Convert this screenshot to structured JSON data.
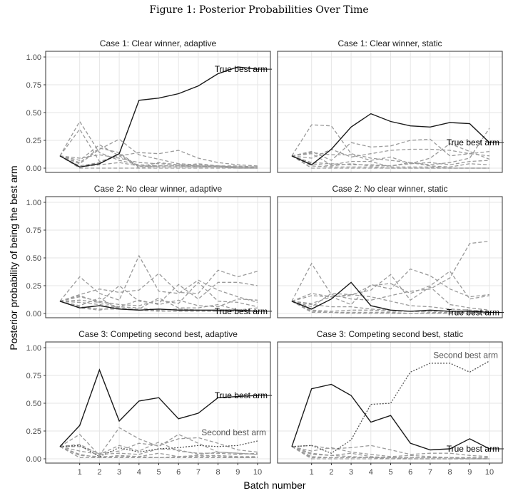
{
  "figure_title": "Figure 1: Posterior Probabilities Over Time",
  "colors": {
    "true_best": "#1a1a1a",
    "competitor": "#9a9a9a",
    "second_best": "#555555",
    "grid": "#e6e6e6",
    "panel_border": "#333333"
  },
  "chart_data": {
    "type": "line",
    "layout": "faceted 3x2 grid",
    "xlabel": "Batch number",
    "ylabel": "Posterior probability of being the best arm",
    "x_ticks": [
      1,
      2,
      3,
      4,
      5,
      6,
      7,
      8,
      9,
      10
    ],
    "y_ticks": [
      "0.00",
      "0.25",
      "0.50",
      "0.75",
      "1.00"
    ],
    "xlim": [
      0,
      10
    ],
    "ylim": [
      0,
      1
    ],
    "grid": true,
    "panels": [
      {
        "title": "Case 1: Clear winner, adaptive",
        "true_best_label": "True best arm",
        "true_best": [
          0.11,
          0.01,
          0.04,
          0.13,
          0.61,
          0.63,
          0.67,
          0.74,
          0.85,
          0.91,
          0.89
        ],
        "others": [
          [
            0.11,
            0.42,
            0.14,
            0.07,
            0.03,
            0.02,
            0.02,
            0.02,
            0.01,
            0.01,
            0.01
          ],
          [
            0.11,
            0.07,
            0.21,
            0.11,
            0.14,
            0.13,
            0.16,
            0.09,
            0.05,
            0.03,
            0.02
          ],
          [
            0.11,
            0.04,
            0.17,
            0.26,
            0.12,
            0.08,
            0.04,
            0.03,
            0.02,
            0.02,
            0.01
          ],
          [
            0.11,
            0.09,
            0.12,
            0.09,
            0.05,
            0.04,
            0.03,
            0.02,
            0.02,
            0.01,
            0.01
          ],
          [
            0.11,
            0.01,
            0.03,
            0.05,
            0.02,
            0.02,
            0.02,
            0.01,
            0.01,
            0.01,
            0.0
          ],
          [
            0.11,
            0.35,
            0.06,
            0.11,
            0.02,
            0.01,
            0.01,
            0.01,
            0.01,
            0.0,
            0.0
          ],
          [
            0.11,
            0.05,
            0.18,
            0.14,
            0.01,
            0.05,
            0.03,
            0.02,
            0.01,
            0.01,
            0.01
          ],
          [
            0.11,
            0.02,
            0.05,
            0.13,
            0.0,
            0.02,
            0.02,
            0.04,
            0.02,
            0.0,
            0.0
          ],
          [
            0.11,
            0.0,
            0.0,
            0.0,
            0.0,
            0.0,
            0.0,
            0.0,
            0.0,
            0.0,
            0.0
          ]
        ]
      },
      {
        "title": "Case 1: Clear winner, static",
        "true_best_label": "True best arm",
        "true_best": [
          0.11,
          0.03,
          0.17,
          0.37,
          0.49,
          0.42,
          0.38,
          0.37,
          0.41,
          0.4,
          0.23
        ],
        "others": [
          [
            0.11,
            0.39,
            0.38,
            0.13,
            0.09,
            0.07,
            0.05,
            0.03,
            0.05,
            0.09,
            0.36
          ],
          [
            0.11,
            0.15,
            0.07,
            0.23,
            0.19,
            0.2,
            0.25,
            0.26,
            0.11,
            0.13,
            0.15
          ],
          [
            0.11,
            0.09,
            0.17,
            0.1,
            0.13,
            0.16,
            0.17,
            0.17,
            0.16,
            0.13,
            0.11
          ],
          [
            0.11,
            0.14,
            0.12,
            0.12,
            0.07,
            0.1,
            0.04,
            0.09,
            0.22,
            0.15,
            0.08
          ],
          [
            0.11,
            0.05,
            0.04,
            0.03,
            0.03,
            0.02,
            0.04,
            0.05,
            0.03,
            0.06,
            0.07
          ],
          [
            0.11,
            0.04,
            0.02,
            0.04,
            0.02,
            0.02,
            0.05,
            0.02,
            0.01,
            0.04,
            0.03
          ],
          [
            0.11,
            0.13,
            0.03,
            0.06,
            0.06,
            0.01,
            0.01,
            0.01,
            0.0,
            0.0,
            0.0
          ],
          [
            0.11,
            0.02,
            0.01,
            0.01,
            0.01,
            0.0,
            0.0,
            0.0,
            0.0,
            0.0,
            0.0
          ],
          [
            0.11,
            0.0,
            0.0,
            0.0,
            0.0,
            0.0,
            0.0,
            0.0,
            0.0,
            0.0,
            0.0
          ]
        ]
      },
      {
        "title": "Case 2: No clear winner, adaptive",
        "true_best_label": "True best arm",
        "true_best": [
          0.11,
          0.05,
          0.07,
          0.04,
          0.03,
          0.04,
          0.03,
          0.03,
          0.03,
          0.03,
          0.02
        ],
        "others": [
          [
            0.11,
            0.33,
            0.18,
            0.12,
            0.52,
            0.2,
            0.18,
            0.3,
            0.21,
            0.15,
            0.1
          ],
          [
            0.11,
            0.17,
            0.22,
            0.19,
            0.21,
            0.36,
            0.19,
            0.18,
            0.39,
            0.33,
            0.38
          ],
          [
            0.11,
            0.16,
            0.1,
            0.25,
            0.11,
            0.09,
            0.26,
            0.13,
            0.28,
            0.28,
            0.25
          ],
          [
            0.11,
            0.15,
            0.11,
            0.08,
            0.07,
            0.12,
            0.09,
            0.28,
            0.11,
            0.1,
            0.06
          ],
          [
            0.11,
            0.12,
            0.1,
            0.06,
            0.12,
            0.08,
            0.12,
            0.07,
            0.06,
            0.13,
            0.12
          ],
          [
            0.11,
            0.07,
            0.14,
            0.04,
            0.04,
            0.14,
            0.05,
            0.05,
            0.08,
            0.03,
            0.05
          ],
          [
            0.11,
            0.05,
            0.03,
            0.06,
            0.05,
            0.03,
            0.04,
            0.03,
            0.02,
            0.02,
            0.02
          ],
          [
            0.11,
            0.06,
            0.04,
            0.04,
            0.03,
            0.02,
            0.02,
            0.02,
            0.02,
            0.02,
            0.02
          ],
          [
            0.11,
            0.1,
            0.08,
            0.05,
            0.03,
            0.03,
            0.04,
            0.03,
            0.02,
            0.02,
            0.02
          ]
        ]
      },
      {
        "title": "Case 2: No clear winner, static",
        "true_best_label": "True best arm",
        "true_best": [
          0.11,
          0.04,
          0.13,
          0.28,
          0.07,
          0.03,
          0.02,
          0.03,
          0.02,
          0.02,
          0.01
        ],
        "others": [
          [
            0.11,
            0.45,
            0.17,
            0.13,
            0.12,
            0.16,
            0.2,
            0.22,
            0.32,
            0.63,
            0.65
          ],
          [
            0.11,
            0.09,
            0.15,
            0.08,
            0.26,
            0.22,
            0.4,
            0.34,
            0.22,
            0.15,
            0.17
          ],
          [
            0.11,
            0.18,
            0.15,
            0.16,
            0.25,
            0.27,
            0.18,
            0.25,
            0.38,
            0.13,
            0.16
          ],
          [
            0.11,
            0.16,
            0.15,
            0.17,
            0.21,
            0.35,
            0.12,
            0.24,
            0.08,
            0.05,
            0.03
          ],
          [
            0.11,
            0.06,
            0.18,
            0.17,
            0.15,
            0.11,
            0.07,
            0.06,
            0.04,
            0.03,
            0.02
          ],
          [
            0.11,
            0.08,
            0.06,
            0.06,
            0.04,
            0.03,
            0.02,
            0.02,
            0.02,
            0.02,
            0.01
          ],
          [
            0.11,
            0.03,
            0.02,
            0.03,
            0.03,
            0.02,
            0.02,
            0.01,
            0.01,
            0.01,
            0.01
          ],
          [
            0.11,
            0.02,
            0.01,
            0.01,
            0.01,
            0.01,
            0.0,
            0.0,
            0.0,
            0.0,
            0.0
          ],
          [
            0.11,
            0.01,
            0.01,
            0.0,
            0.0,
            0.0,
            0.0,
            0.0,
            0.0,
            0.0,
            0.0
          ]
        ]
      },
      {
        "title": "Case 3: Competing second best, adaptive",
        "true_best_label": "True best arm",
        "second_best_label": "Second best arm",
        "true_best": [
          0.11,
          0.3,
          0.8,
          0.34,
          0.52,
          0.55,
          0.36,
          0.41,
          0.55,
          0.56,
          0.57
        ],
        "second_best": [
          0.11,
          0.12,
          0.02,
          0.1,
          0.06,
          0.09,
          0.1,
          0.12,
          0.11,
          0.12,
          0.16
        ],
        "others": [
          [
            0.11,
            0.22,
            0.03,
            0.28,
            0.18,
            0.11,
            0.22,
            0.14,
            0.06,
            0.05,
            0.04
          ],
          [
            0.11,
            0.11,
            0.05,
            0.07,
            0.14,
            0.12,
            0.18,
            0.19,
            0.14,
            0.08,
            0.06
          ],
          [
            0.11,
            0.13,
            0.04,
            0.12,
            0.07,
            0.15,
            0.07,
            0.05,
            0.05,
            0.04,
            0.05
          ],
          [
            0.11,
            0.07,
            0.04,
            0.05,
            0.04,
            0.09,
            0.08,
            0.04,
            0.06,
            0.05,
            0.04
          ],
          [
            0.11,
            0.03,
            0.02,
            0.02,
            0.02,
            0.05,
            0.02,
            0.03,
            0.03,
            0.02,
            0.02
          ],
          [
            0.11,
            0.04,
            0.01,
            0.03,
            0.02,
            0.01,
            0.02,
            0.02,
            0.02,
            0.01,
            0.01
          ],
          [
            0.11,
            0.01,
            0.01,
            0.01,
            0.01,
            0.01,
            0.01,
            0.01,
            0.01,
            0.01,
            0.01
          ]
        ]
      },
      {
        "title": "Case 3: Competing second best, static",
        "true_best_label": "True best arm",
        "second_best_label": "Second best arm",
        "true_best": [
          0.11,
          0.63,
          0.67,
          0.57,
          0.33,
          0.39,
          0.14,
          0.08,
          0.09,
          0.18,
          0.09
        ],
        "second_best": [
          0.11,
          0.12,
          0.05,
          0.17,
          0.49,
          0.5,
          0.78,
          0.86,
          0.86,
          0.78,
          0.88
        ],
        "others": [
          [
            0.11,
            0.12,
            0.09,
            0.1,
            0.12,
            0.08,
            0.04,
            0.05,
            0.05,
            0.03,
            0.02
          ],
          [
            0.11,
            0.07,
            0.1,
            0.06,
            0.04,
            0.02,
            0.03,
            0.02,
            0.01,
            0.01,
            0.01
          ],
          [
            0.11,
            0.04,
            0.03,
            0.05,
            0.02,
            0.01,
            0.01,
            0.01,
            0.01,
            0.01,
            0.0
          ],
          [
            0.11,
            0.05,
            0.03,
            0.02,
            0.01,
            0.01,
            0.01,
            0.01,
            0.01,
            0.0,
            0.0
          ],
          [
            0.11,
            0.02,
            0.01,
            0.01,
            0.01,
            0.01,
            0.0,
            0.0,
            0.0,
            0.0,
            0.0
          ],
          [
            0.11,
            0.01,
            0.01,
            0.01,
            0.01,
            0.0,
            0.0,
            0.0,
            0.0,
            0.0,
            0.0
          ],
          [
            0.11,
            0.0,
            0.0,
            0.0,
            0.0,
            0.0,
            0.0,
            0.0,
            0.0,
            0.0,
            0.0
          ]
        ]
      }
    ]
  }
}
